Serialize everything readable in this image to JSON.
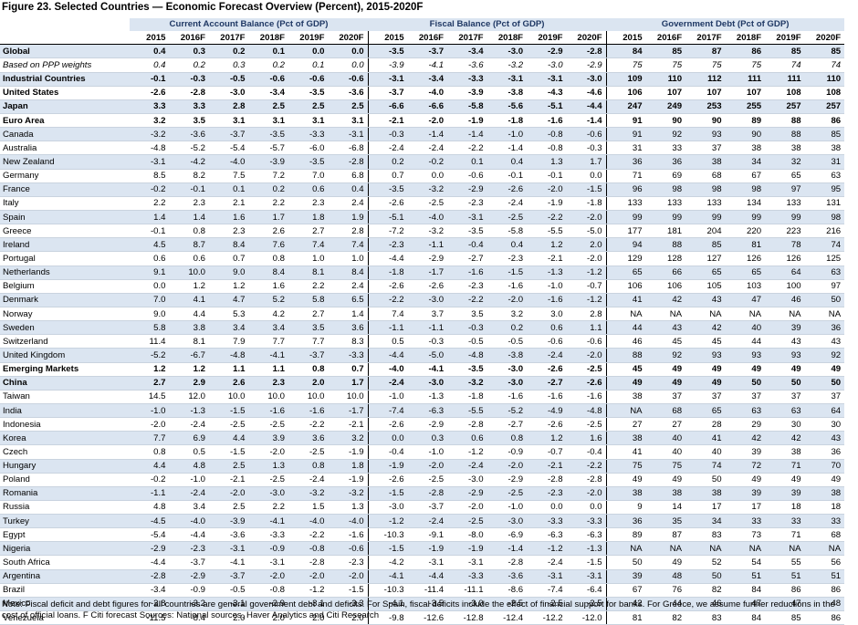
{
  "title": "Figure 23. Selected Countries — Economic Forecast Overview (Percent), 2015-2020F",
  "groups": [
    "Current Account Balance (Pct of GDP)",
    "Fiscal Balance (Pct of GDP)",
    "Government Debt (Pct of GDP)"
  ],
  "years": [
    "2015",
    "2016F",
    "2017F",
    "2018F",
    "2019F",
    "2020F"
  ],
  "rows": [
    {
      "name": "Global",
      "style": "bold shade",
      "ca": [
        "0.4",
        "0.3",
        "0.2",
        "0.1",
        "0.0",
        "0.0"
      ],
      "fb": [
        "-3.5",
        "-3.7",
        "-3.4",
        "-3.0",
        "-2.9",
        "-2.8"
      ],
      "gd": [
        "84",
        "85",
        "87",
        "86",
        "85",
        "85"
      ]
    },
    {
      "name": "Based on PPP weights",
      "style": "italic",
      "ca": [
        "0.4",
        "0.2",
        "0.3",
        "0.2",
        "0.1",
        "0.0"
      ],
      "fb": [
        "-3.9",
        "-4.1",
        "-3.6",
        "-3.2",
        "-3.0",
        "-2.9"
      ],
      "gd": [
        "75",
        "75",
        "75",
        "75",
        "74",
        "74"
      ]
    },
    {
      "name": "Industrial Countries",
      "style": "bold shade",
      "ca": [
        "-0.1",
        "-0.3",
        "-0.5",
        "-0.6",
        "-0.6",
        "-0.6"
      ],
      "fb": [
        "-3.1",
        "-3.4",
        "-3.3",
        "-3.1",
        "-3.1",
        "-3.0"
      ],
      "gd": [
        "109",
        "110",
        "112",
        "111",
        "111",
        "110"
      ]
    },
    {
      "name": "United States",
      "style": "bold",
      "ca": [
        "-2.6",
        "-2.8",
        "-3.0",
        "-3.4",
        "-3.5",
        "-3.6"
      ],
      "fb": [
        "-3.7",
        "-4.0",
        "-3.9",
        "-3.8",
        "-4.3",
        "-4.6"
      ],
      "gd": [
        "106",
        "107",
        "107",
        "107",
        "108",
        "108"
      ]
    },
    {
      "name": "Japan",
      "style": "bold shade",
      "ca": [
        "3.3",
        "3.3",
        "2.8",
        "2.5",
        "2.5",
        "2.5"
      ],
      "fb": [
        "-6.6",
        "-6.6",
        "-5.8",
        "-5.6",
        "-5.1",
        "-4.4"
      ],
      "gd": [
        "247",
        "249",
        "253",
        "255",
        "257",
        "257"
      ]
    },
    {
      "name": "Euro Area",
      "style": "bold",
      "ca": [
        "3.2",
        "3.5",
        "3.1",
        "3.1",
        "3.1",
        "3.1"
      ],
      "fb": [
        "-2.1",
        "-2.0",
        "-1.9",
        "-1.8",
        "-1.6",
        "-1.4"
      ],
      "gd": [
        "91",
        "90",
        "90",
        "89",
        "88",
        "86"
      ]
    },
    {
      "name": "Canada",
      "style": "shade",
      "ca": [
        "-3.2",
        "-3.6",
        "-3.7",
        "-3.5",
        "-3.3",
        "-3.1"
      ],
      "fb": [
        "-0.3",
        "-1.4",
        "-1.4",
        "-1.0",
        "-0.8",
        "-0.6"
      ],
      "gd": [
        "91",
        "92",
        "93",
        "90",
        "88",
        "85"
      ]
    },
    {
      "name": "Australia",
      "style": "",
      "ca": [
        "-4.8",
        "-5.2",
        "-5.4",
        "-5.7",
        "-6.0",
        "-6.8"
      ],
      "fb": [
        "-2.4",
        "-2.4",
        "-2.2",
        "-1.4",
        "-0.8",
        "-0.3"
      ],
      "gd": [
        "31",
        "33",
        "37",
        "38",
        "38",
        "38"
      ]
    },
    {
      "name": "New Zealand",
      "style": "shade",
      "ca": [
        "-3.1",
        "-4.2",
        "-4.0",
        "-3.9",
        "-3.5",
        "-2.8"
      ],
      "fb": [
        "0.2",
        "-0.2",
        "0.1",
        "0.4",
        "1.3",
        "1.7"
      ],
      "gd": [
        "36",
        "36",
        "38",
        "34",
        "32",
        "31"
      ]
    },
    {
      "name": "Germany",
      "style": "",
      "ca": [
        "8.5",
        "8.2",
        "7.5",
        "7.2",
        "7.0",
        "6.8"
      ],
      "fb": [
        "0.7",
        "0.0",
        "-0.6",
        "-0.1",
        "-0.1",
        "0.0"
      ],
      "gd": [
        "71",
        "69",
        "68",
        "67",
        "65",
        "63"
      ]
    },
    {
      "name": "France",
      "style": "shade",
      "ca": [
        "-0.2",
        "-0.1",
        "0.1",
        "0.2",
        "0.6",
        "0.4"
      ],
      "fb": [
        "-3.5",
        "-3.2",
        "-2.9",
        "-2.6",
        "-2.0",
        "-1.5"
      ],
      "gd": [
        "96",
        "98",
        "98",
        "98",
        "97",
        "95"
      ]
    },
    {
      "name": "Italy",
      "style": "",
      "ca": [
        "2.2",
        "2.3",
        "2.1",
        "2.2",
        "2.3",
        "2.4"
      ],
      "fb": [
        "-2.6",
        "-2.5",
        "-2.3",
        "-2.4",
        "-1.9",
        "-1.8"
      ],
      "gd": [
        "133",
        "133",
        "133",
        "134",
        "133",
        "131"
      ]
    },
    {
      "name": "Spain",
      "style": "shade",
      "ca": [
        "1.4",
        "1.4",
        "1.6",
        "1.7",
        "1.8",
        "1.9"
      ],
      "fb": [
        "-5.1",
        "-4.0",
        "-3.1",
        "-2.5",
        "-2.2",
        "-2.0"
      ],
      "gd": [
        "99",
        "99",
        "99",
        "99",
        "99",
        "98"
      ]
    },
    {
      "name": "Greece",
      "style": "",
      "ca": [
        "-0.1",
        "0.8",
        "2.3",
        "2.6",
        "2.7",
        "2.8"
      ],
      "fb": [
        "-7.2",
        "-3.2",
        "-3.5",
        "-5.8",
        "-5.5",
        "-5.0"
      ],
      "gd": [
        "177",
        "181",
        "204",
        "220",
        "223",
        "216"
      ]
    },
    {
      "name": "Ireland",
      "style": "shade",
      "ca": [
        "4.5",
        "8.7",
        "8.4",
        "7.6",
        "7.4",
        "7.4"
      ],
      "fb": [
        "-2.3",
        "-1.1",
        "-0.4",
        "0.4",
        "1.2",
        "2.0"
      ],
      "gd": [
        "94",
        "88",
        "85",
        "81",
        "78",
        "74"
      ]
    },
    {
      "name": "Portugal",
      "style": "",
      "ca": [
        "0.6",
        "0.6",
        "0.7",
        "0.8",
        "1.0",
        "1.0"
      ],
      "fb": [
        "-4.4",
        "-2.9",
        "-2.7",
        "-2.3",
        "-2.1",
        "-2.0"
      ],
      "gd": [
        "129",
        "128",
        "127",
        "126",
        "126",
        "125"
      ]
    },
    {
      "name": "Netherlands",
      "style": "shade",
      "ca": [
        "9.1",
        "10.0",
        "9.0",
        "8.4",
        "8.1",
        "8.4"
      ],
      "fb": [
        "-1.8",
        "-1.7",
        "-1.6",
        "-1.5",
        "-1.3",
        "-1.2"
      ],
      "gd": [
        "65",
        "66",
        "65",
        "65",
        "64",
        "63"
      ]
    },
    {
      "name": "Belgium",
      "style": "",
      "ca": [
        "0.0",
        "1.2",
        "1.2",
        "1.6",
        "2.2",
        "2.4"
      ],
      "fb": [
        "-2.6",
        "-2.6",
        "-2.3",
        "-1.6",
        "-1.0",
        "-0.7"
      ],
      "gd": [
        "106",
        "106",
        "105",
        "103",
        "100",
        "97"
      ]
    },
    {
      "name": "Denmark",
      "style": "shade",
      "ca": [
        "7.0",
        "4.1",
        "4.7",
        "5.2",
        "5.8",
        "6.5"
      ],
      "fb": [
        "-2.2",
        "-3.0",
        "-2.2",
        "-2.0",
        "-1.6",
        "-1.2"
      ],
      "gd": [
        "41",
        "42",
        "43",
        "47",
        "46",
        "50"
      ]
    },
    {
      "name": "Norway",
      "style": "",
      "ca": [
        "9.0",
        "4.4",
        "5.3",
        "4.2",
        "2.7",
        "1.4"
      ],
      "fb": [
        "7.4",
        "3.7",
        "3.5",
        "3.2",
        "3.0",
        "2.8"
      ],
      "gd": [
        "NA",
        "NA",
        "NA",
        "NA",
        "NA",
        "NA"
      ]
    },
    {
      "name": "Sweden",
      "style": "shade",
      "ca": [
        "5.8",
        "3.8",
        "3.4",
        "3.4",
        "3.5",
        "3.6"
      ],
      "fb": [
        "-1.1",
        "-1.1",
        "-0.3",
        "0.2",
        "0.6",
        "1.1"
      ],
      "gd": [
        "44",
        "43",
        "42",
        "40",
        "39",
        "36"
      ]
    },
    {
      "name": "Switzerland",
      "style": "",
      "ca": [
        "11.4",
        "8.1",
        "7.9",
        "7.7",
        "7.7",
        "8.3"
      ],
      "fb": [
        "0.5",
        "-0.3",
        "-0.5",
        "-0.5",
        "-0.6",
        "-0.6"
      ],
      "gd": [
        "46",
        "45",
        "45",
        "44",
        "43",
        "43"
      ]
    },
    {
      "name": "United Kingdom",
      "style": "shade",
      "ca": [
        "-5.2",
        "-6.7",
        "-4.8",
        "-4.1",
        "-3.7",
        "-3.3"
      ],
      "fb": [
        "-4.4",
        "-5.0",
        "-4.8",
        "-3.8",
        "-2.4",
        "-2.0"
      ],
      "gd": [
        "88",
        "92",
        "93",
        "93",
        "93",
        "92"
      ]
    },
    {
      "name": "Emerging Markets",
      "style": "bold",
      "ca": [
        "1.2",
        "1.2",
        "1.1",
        "1.1",
        "0.8",
        "0.7"
      ],
      "fb": [
        "-4.0",
        "-4.1",
        "-3.5",
        "-3.0",
        "-2.6",
        "-2.5"
      ],
      "gd": [
        "45",
        "49",
        "49",
        "49",
        "49",
        "49"
      ]
    },
    {
      "name": "China",
      "style": "bold shade",
      "ca": [
        "2.7",
        "2.9",
        "2.6",
        "2.3",
        "2.0",
        "1.7"
      ],
      "fb": [
        "-2.4",
        "-3.0",
        "-3.2",
        "-3.0",
        "-2.7",
        "-2.6"
      ],
      "gd": [
        "49",
        "49",
        "49",
        "50",
        "50",
        "50"
      ]
    },
    {
      "name": "Taiwan",
      "style": "",
      "ca": [
        "14.5",
        "12.0",
        "10.0",
        "10.0",
        "10.0",
        "10.0"
      ],
      "fb": [
        "-1.0",
        "-1.3",
        "-1.8",
        "-1.6",
        "-1.6",
        "-1.6"
      ],
      "gd": [
        "38",
        "37",
        "37",
        "37",
        "37",
        "37"
      ]
    },
    {
      "name": "India",
      "style": "shade",
      "ca": [
        "-1.0",
        "-1.3",
        "-1.5",
        "-1.6",
        "-1.6",
        "-1.7"
      ],
      "fb": [
        "-7.4",
        "-6.3",
        "-5.5",
        "-5.2",
        "-4.9",
        "-4.8"
      ],
      "gd": [
        "NA",
        "68",
        "65",
        "63",
        "63",
        "64"
      ]
    },
    {
      "name": "Indonesia",
      "style": "",
      "ca": [
        "-2.0",
        "-2.4",
        "-2.5",
        "-2.5",
        "-2.2",
        "-2.1"
      ],
      "fb": [
        "-2.6",
        "-2.9",
        "-2.8",
        "-2.7",
        "-2.6",
        "-2.5"
      ],
      "gd": [
        "27",
        "27",
        "28",
        "29",
        "30",
        "30"
      ]
    },
    {
      "name": "Korea",
      "style": "shade",
      "ca": [
        "7.7",
        "6.9",
        "4.4",
        "3.9",
        "3.6",
        "3.2"
      ],
      "fb": [
        "0.0",
        "0.3",
        "0.6",
        "0.8",
        "1.2",
        "1.6"
      ],
      "gd": [
        "38",
        "40",
        "41",
        "42",
        "42",
        "43"
      ]
    },
    {
      "name": "Czech",
      "style": "",
      "ca": [
        "0.8",
        "0.5",
        "-1.5",
        "-2.0",
        "-2.5",
        "-1.9"
      ],
      "fb": [
        "-0.4",
        "-1.0",
        "-1.2",
        "-0.9",
        "-0.7",
        "-0.4"
      ],
      "gd": [
        "41",
        "40",
        "40",
        "39",
        "38",
        "36"
      ]
    },
    {
      "name": "Hungary",
      "style": "shade",
      "ca": [
        "4.4",
        "4.8",
        "2.5",
        "1.3",
        "0.8",
        "1.8"
      ],
      "fb": [
        "-1.9",
        "-2.0",
        "-2.4",
        "-2.0",
        "-2.1",
        "-2.2"
      ],
      "gd": [
        "75",
        "75",
        "74",
        "72",
        "71",
        "70"
      ]
    },
    {
      "name": "Poland",
      "style": "",
      "ca": [
        "-0.2",
        "-1.0",
        "-2.1",
        "-2.5",
        "-2.4",
        "-1.9"
      ],
      "fb": [
        "-2.6",
        "-2.5",
        "-3.0",
        "-2.9",
        "-2.8",
        "-2.8"
      ],
      "gd": [
        "49",
        "49",
        "50",
        "49",
        "49",
        "49"
      ]
    },
    {
      "name": "Romania",
      "style": "shade",
      "ca": [
        "-1.1",
        "-2.4",
        "-2.0",
        "-3.0",
        "-3.2",
        "-3.2"
      ],
      "fb": [
        "-1.5",
        "-2.8",
        "-2.9",
        "-2.5",
        "-2.3",
        "-2.0"
      ],
      "gd": [
        "38",
        "38",
        "38",
        "39",
        "39",
        "38"
      ]
    },
    {
      "name": "Russia",
      "style": "",
      "ca": [
        "4.8",
        "3.4",
        "2.5",
        "2.2",
        "1.5",
        "1.3"
      ],
      "fb": [
        "-3.0",
        "-3.7",
        "-2.0",
        "-1.0",
        "0.0",
        "0.0"
      ],
      "gd": [
        "9",
        "14",
        "17",
        "17",
        "18",
        "18"
      ]
    },
    {
      "name": "Turkey",
      "style": "shade",
      "ca": [
        "-4.5",
        "-4.0",
        "-3.9",
        "-4.1",
        "-4.0",
        "-4.0"
      ],
      "fb": [
        "-1.2",
        "-2.4",
        "-2.5",
        "-3.0",
        "-3.3",
        "-3.3"
      ],
      "gd": [
        "36",
        "35",
        "34",
        "33",
        "33",
        "33"
      ]
    },
    {
      "name": "Egypt",
      "style": "",
      "ca": [
        "-5.4",
        "-4.4",
        "-3.6",
        "-3.3",
        "-2.2",
        "-1.6"
      ],
      "fb": [
        "-10.3",
        "-9.1",
        "-8.0",
        "-6.9",
        "-6.3",
        "-6.3"
      ],
      "gd": [
        "89",
        "87",
        "83",
        "73",
        "71",
        "68"
      ]
    },
    {
      "name": "Nigeria",
      "style": "shade",
      "ca": [
        "-2.9",
        "-2.3",
        "-3.1",
        "-0.9",
        "-0.8",
        "-0.6"
      ],
      "fb": [
        "-1.5",
        "-1.9",
        "-1.9",
        "-1.4",
        "-1.2",
        "-1.3"
      ],
      "gd": [
        "NA",
        "NA",
        "NA",
        "NA",
        "NA",
        "NA"
      ]
    },
    {
      "name": "South Africa",
      "style": "",
      "ca": [
        "-4.4",
        "-3.7",
        "-4.1",
        "-3.1",
        "-2.8",
        "-2.3"
      ],
      "fb": [
        "-4.2",
        "-3.1",
        "-3.1",
        "-2.8",
        "-2.4",
        "-1.5"
      ],
      "gd": [
        "50",
        "49",
        "52",
        "54",
        "55",
        "56"
      ]
    },
    {
      "name": "Argentina",
      "style": "shade",
      "ca": [
        "-2.8",
        "-2.9",
        "-3.7",
        "-2.0",
        "-2.0",
        "-2.0"
      ],
      "fb": [
        "-4.1",
        "-4.4",
        "-3.3",
        "-3.6",
        "-3.1",
        "-3.1"
      ],
      "gd": [
        "39",
        "48",
        "50",
        "51",
        "51",
        "51"
      ]
    },
    {
      "name": "Brazil",
      "style": "",
      "ca": [
        "-3.4",
        "-0.9",
        "-0.5",
        "-0.8",
        "-1.2",
        "-1.5"
      ],
      "fb": [
        "-10.3",
        "-11.4",
        "-11.1",
        "-8.6",
        "-7.4",
        "-6.4"
      ],
      "gd": [
        "67",
        "76",
        "82",
        "84",
        "86",
        "86"
      ]
    },
    {
      "name": "Mexico",
      "style": "shade",
      "ca": [
        "-2.8",
        "-3.2",
        "-3.1",
        "-2.9",
        "-3.1",
        "-3.3"
      ],
      "fb": [
        "-4.1",
        "-3.5",
        "-3.0",
        "-2.5",
        "-2.5",
        "-2.5"
      ],
      "gd": [
        "42",
        "44",
        "46",
        "47",
        "47",
        "48"
      ]
    },
    {
      "name": "Venezuela",
      "style": "",
      "ca": [
        "-11.5",
        "-8.4",
        "2.0",
        "2.0",
        "2.0",
        "2.0"
      ],
      "fb": [
        "-9.8",
        "-12.6",
        "-12.8",
        "-12.4",
        "-12.2",
        "-12.0"
      ],
      "gd": [
        "81",
        "82",
        "83",
        "84",
        "85",
        "86"
      ]
    }
  ],
  "note": "Note: Fiscal deficit and debt figures for all countries are general government debt and deficits. For Spain, fiscal deficits include the effect of financial support for banks. For Greece, we assume further reductions in the cost of official loans. F Citi forecast  Sources: National sources, Haver Analytics and Citi Research"
}
